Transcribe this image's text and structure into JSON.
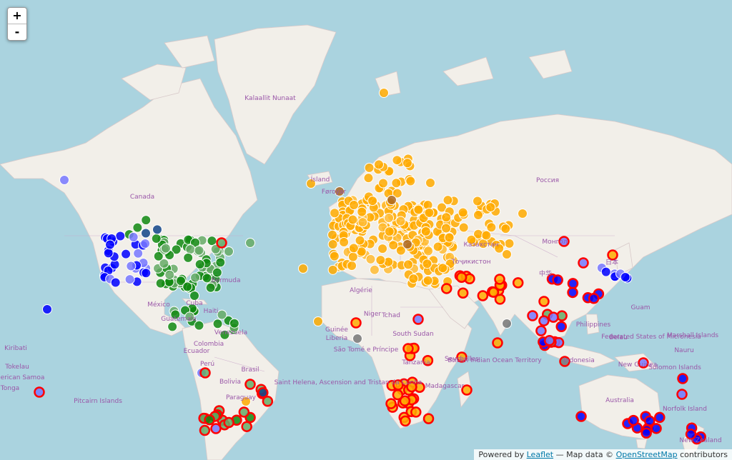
{
  "zoom": {
    "in_label": "+",
    "out_label": "-"
  },
  "attribution": {
    "prefix": "Powered by",
    "leaflet": "Leaflet",
    "middle": "— Map data ©",
    "osm": "OpenStreetMap",
    "suffix": "contributors"
  },
  "labels": {
    "greenland": "Kalaallit Nunaat",
    "canada": "Canada",
    "russia": "Россия",
    "bermuda": "Bermuda",
    "mexico": "México",
    "cuba": "Cuba",
    "haiti": "Haiti",
    "guatemala": "Guatemala",
    "venezuela": "Venezuela",
    "colombia": "Colombia",
    "ecuador": "Ecuador",
    "peru": "Perú",
    "bolivia": "Bolivia",
    "brasil": "Brasil",
    "paraguay": "Paraguay",
    "kiribati": "Kiribati",
    "tokelau": "Tokelau",
    "american_samoa": "American Samoa",
    "tonga": "Tonga",
    "pitcairn": "Pitcairn Islands",
    "algerie": "Algérie",
    "niger": "Niger",
    "tchad": "Tchad",
    "south_sudan": "South Sudan",
    "liberia": "Liberia",
    "guinee": "Guinée",
    "sao_tome": "São Tomé e Príncipe",
    "tanzania": "Tanzania",
    "seychelles": "Seychelles",
    "st_helena": "Saint Helena, Ascension and Tristan da Cunha",
    "madagascar": "Madagascar",
    "biot": "British Indian Ocean Territory",
    "kazakhstan": "Казахстан",
    "tajikistan": "Тоҷикистон",
    "mongolia": "Монгол",
    "china": "中华",
    "japan": "日本",
    "philippines": "Philippines",
    "indonesia": "Indonesia",
    "guam": "Guam",
    "belau": "Belau",
    "micronesia": "Federated States of Micronesia",
    "marshall": "Marshall Islands",
    "nauru": "Nauru",
    "new_guinea": "New Guinea",
    "solomon": "Solomon Islands",
    "australia": "Australia",
    "norfolk": "Norfolk Island",
    "new_zealand": "New Zealand",
    "iceland": "Ísland",
    "faroe": "Føroyar"
  },
  "markers": {
    "colors": {
      "blue": "#0000ff",
      "light_blue": "#7777ff",
      "green": "#118811",
      "light_green": "#66aa66",
      "navy": "#114488",
      "orange": "#ffaa00",
      "brown": "#aa6622",
      "gray": "#777777",
      "red_ring": "#ff0000"
    },
    "legend_note": ""
  }
}
